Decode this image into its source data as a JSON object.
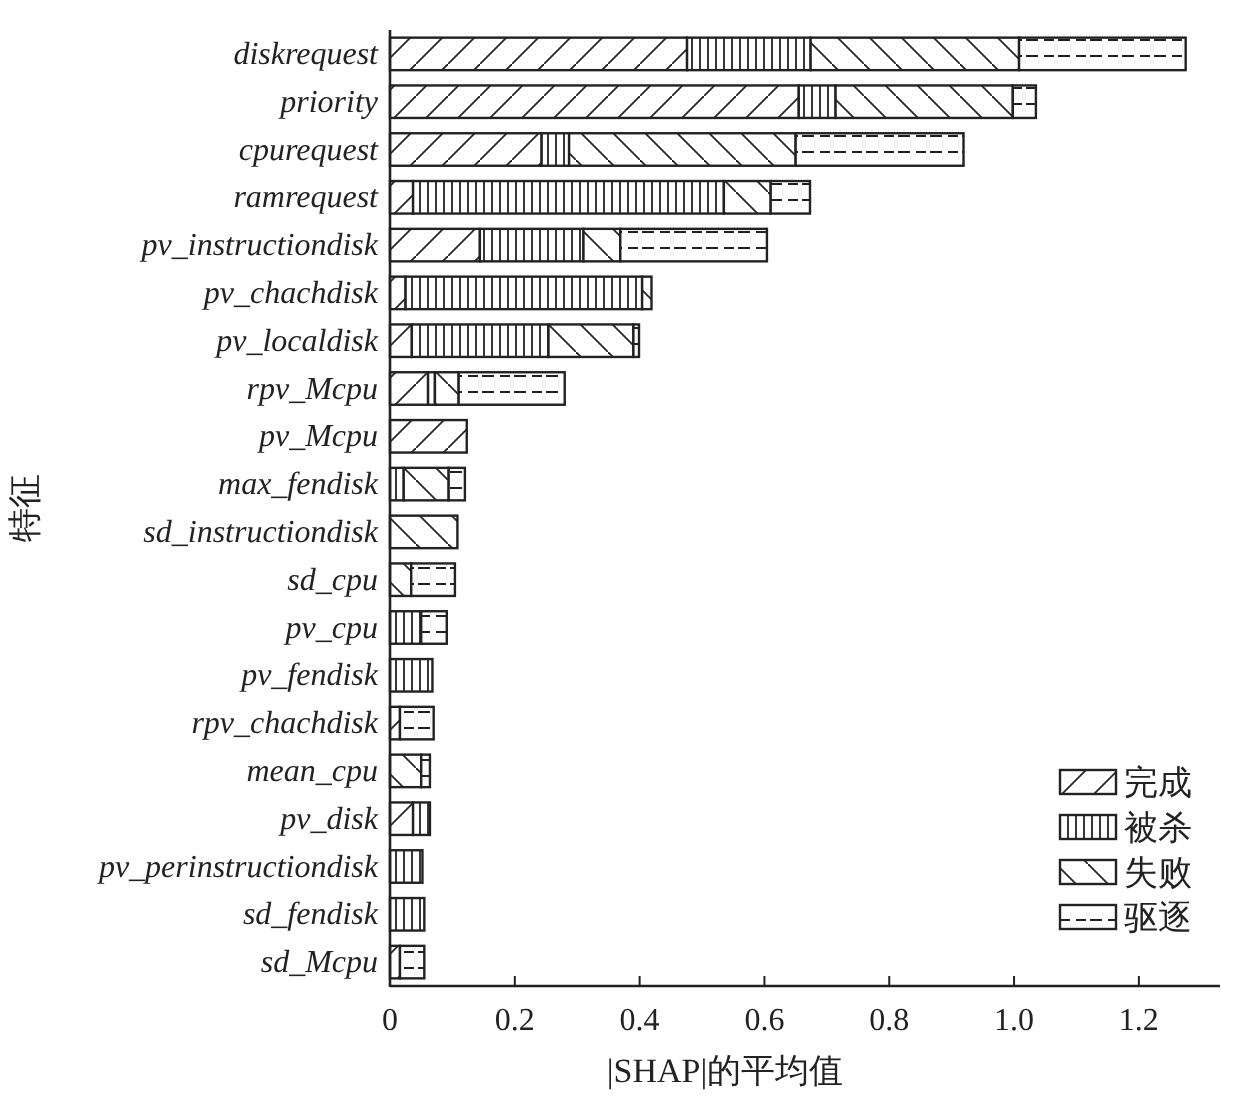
{
  "chart_data": {
    "type": "bar",
    "orientation": "horizontal",
    "stacked": true,
    "xlabel": "|SHAP|的平均值",
    "ylabel": "特征",
    "categories": [
      "diskrequest",
      "priority",
      "cpurequest",
      "ramrequest",
      "pv_instructiondisk",
      "pv_chachdisk",
      "pv_localdisk",
      "rpv_Mcpu",
      "pv_Mcpu",
      "max_fendisk",
      "sd_instructiondisk",
      "sd_cpu",
      "pv_cpu",
      "pv_fendisk",
      "rpv_chachdisk",
      "mean_cpu",
      "pv_disk",
      "pv_perinstructiondisk",
      "sd_fendisk",
      "sd_Mcpu"
    ],
    "series": [
      {
        "name": "完成",
        "color": "#222222",
        "values": [
          0.476,
          0.655,
          0.243,
          0.037,
          0.144,
          0.025,
          0.035,
          0.061,
          0.123,
          null,
          0,
          0,
          0,
          0,
          0.016,
          0,
          0.037,
          0,
          0,
          0.016
        ]
      },
      {
        "name": "被杀",
        "color": "#222222",
        "values": [
          0.198,
          0.059,
          0.044,
          0.498,
          0.166,
          0.379,
          0.219,
          0.011,
          0,
          0.022,
          0,
          0,
          0.05,
          0.068,
          0,
          0,
          0.027,
          0.052,
          0.055,
          0
        ]
      },
      {
        "name": "失败",
        "color": "#222222",
        "values": [
          0.334,
          0.284,
          0.363,
          0.075,
          0.059,
          0.015,
          0.136,
          0.038,
          0,
          0.072,
          0.108,
          0.034,
          0,
          0,
          0,
          0.05,
          0,
          0,
          0,
          0
        ]
      },
      {
        "name": "驱逐",
        "color": "#222222",
        "values": [
          0.267,
          0.037,
          0.269,
          0.063,
          0.235,
          0,
          0.009,
          0.17,
          0,
          0.026,
          0,
          0.07,
          0.041,
          0,
          0.054,
          0.014,
          0,
          0,
          0,
          0.039
        ]
      }
    ],
    "xlim": [
      0,
      1.33
    ],
    "xticks": [
      0,
      0.2,
      0.4,
      0.6,
      0.8,
      {
        "value": 1,
        "label": "1.0"
      },
      1.2
    ],
    "legend": "bottom right",
    "grid": false
  }
}
